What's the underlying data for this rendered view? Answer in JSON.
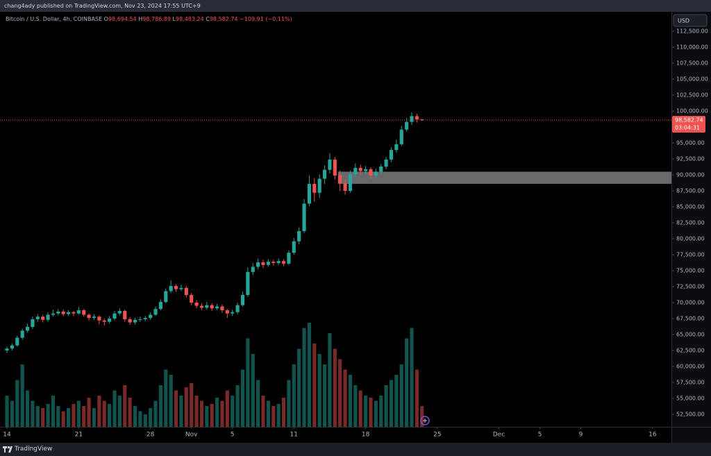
{
  "header": {
    "text": "chang4ady published on TradingView.com, Nov 23, 2024 17:55 UTC+9"
  },
  "footer": {
    "brand": "TradingView"
  },
  "chart_data": {
    "type": "candlestick",
    "symbol": "Bitcoin / U.S. Dollar, 4h, COINBASE",
    "ohlc_legend": [
      {
        "key": "O",
        "value": "98,694.54"
      },
      {
        "key": "H",
        "value": "98,786.89"
      },
      {
        "key": "L",
        "value": "98,483.24"
      },
      {
        "key": "C",
        "value": "98,582.74"
      }
    ],
    "change": "−109.91 (−0.11%)",
    "currency": "USD",
    "last_price": 98582.74,
    "last_price_label": "98,582.74",
    "countdown": "03:04:31",
    "up_color": "#26a69a",
    "down_color": "#ef5350",
    "zone": {
      "x_from": 32.3,
      "y_range": [
        88600,
        90500
      ],
      "color": "#8c8c8c"
    },
    "xlim": [
      -0.68,
      64.84
    ],
    "ylim": [
      50543,
      115543
    ],
    "grid": false,
    "xticks": [
      {
        "value": 0,
        "label": "14"
      },
      {
        "value": 7,
        "label": "21"
      },
      {
        "value": 14,
        "label": "28"
      },
      {
        "value": 18,
        "label": "Nov"
      },
      {
        "value": 22,
        "label": "5"
      },
      {
        "value": 28,
        "label": "11"
      },
      {
        "value": 35,
        "label": "18"
      },
      {
        "value": 42,
        "label": "25"
      },
      {
        "value": 48,
        "label": "Dec"
      },
      {
        "value": 52,
        "label": "5"
      },
      {
        "value": 56,
        "label": "9"
      },
      {
        "value": 63,
        "label": "16"
      }
    ],
    "yticks": [
      {
        "value": 52500,
        "label": "52,500.00"
      },
      {
        "value": 55000,
        "label": "55,000.00"
      },
      {
        "value": 57500,
        "label": "57,500.00"
      },
      {
        "value": 60000,
        "label": "60,000.00"
      },
      {
        "value": 62500,
        "label": "62,500.00"
      },
      {
        "value": 65000,
        "label": "65,000.00"
      },
      {
        "value": 67500,
        "label": "67,500.00"
      },
      {
        "value": 70000,
        "label": "70,000.00"
      },
      {
        "value": 72500,
        "label": "72,500.00"
      },
      {
        "value": 75000,
        "label": "75,000.00"
      },
      {
        "value": 77500,
        "label": "77,500.00"
      },
      {
        "value": 80000,
        "label": "80,000.00"
      },
      {
        "value": 82500,
        "label": "82,500.00"
      },
      {
        "value": 85000,
        "label": "85,000.00"
      },
      {
        "value": 87500,
        "label": "87,500.00"
      },
      {
        "value": 90000,
        "label": "90,000.00"
      },
      {
        "value": 92500,
        "label": "92,500.00"
      },
      {
        "value": 95000,
        "label": "95,000.00"
      },
      {
        "value": 97500,
        "label": "97,500.00"
      },
      {
        "value": 100000,
        "label": "100,000.00"
      },
      {
        "value": 102500,
        "label": "102,500.00"
      },
      {
        "value": 105000,
        "label": "105,000.00"
      },
      {
        "value": 107500,
        "label": "107,500.00"
      },
      {
        "value": 110000,
        "label": "110,000.00"
      },
      {
        "value": 112500,
        "label": "112,500.00"
      }
    ],
    "x": [
      0,
      0.5,
      1,
      1.5,
      2,
      2.5,
      3,
      3.5,
      4,
      4.5,
      5,
      5.5,
      6,
      6.5,
      7,
      7.5,
      8,
      8.5,
      9,
      9.5,
      10,
      10.5,
      11,
      11.5,
      12,
      12.5,
      13,
      13.5,
      14,
      14.5,
      15,
      15.5,
      16,
      16.5,
      17,
      17.5,
      18,
      18.5,
      19,
      19.5,
      20,
      20.5,
      21,
      21.5,
      22,
      22.5,
      23,
      23.5,
      24,
      24.5,
      25,
      25.5,
      26,
      26.5,
      27,
      27.5,
      28,
      28.5,
      29,
      29.5,
      30,
      30.5,
      31,
      31.5,
      32,
      32.5,
      33,
      33.5,
      34,
      34.5,
      35,
      35.5,
      36,
      36.5,
      37,
      37.5,
      38,
      38.5,
      39,
      39.5,
      40,
      40.5
    ],
    "open": [
      62500,
      62800,
      63300,
      64500,
      65600,
      66200,
      67400,
      67800,
      67300,
      68100,
      68300,
      68600,
      68200,
      68500,
      68300,
      68800,
      68100,
      67600,
      67800,
      67200,
      67000,
      67500,
      68300,
      68700,
      67400,
      66900,
      67300,
      67400,
      67600,
      68100,
      69000,
      70100,
      71800,
      72600,
      72100,
      72300,
      71200,
      70000,
      69500,
      69200,
      69600,
      69100,
      69400,
      68800,
      68300,
      68500,
      69600,
      71200,
      74800,
      75600,
      76300,
      75900,
      76400,
      76200,
      76500,
      76100,
      77800,
      79600,
      81200,
      85500,
      88600,
      87200,
      89400,
      90800,
      92400,
      89900,
      88700,
      87500,
      90100,
      91100,
      90600,
      90900,
      89900,
      90500,
      91300,
      92400,
      93900,
      94800,
      97100,
      98300,
      99200,
      98694.54
    ],
    "high": [
      63100,
      63600,
      64800,
      65900,
      66700,
      67800,
      68200,
      68100,
      68500,
      68900,
      69000,
      68900,
      68800,
      68700,
      69300,
      69000,
      68300,
      68200,
      68000,
      67500,
      67900,
      68700,
      69100,
      68900,
      67700,
      67600,
      67800,
      67900,
      68500,
      69400,
      70500,
      72200,
      73500,
      72900,
      72800,
      72600,
      71500,
      70400,
      69900,
      70100,
      69900,
      69800,
      69700,
      69000,
      68900,
      70000,
      71700,
      75500,
      76200,
      76900,
      76700,
      76800,
      76700,
      76900,
      76800,
      78200,
      80100,
      81800,
      86200,
      89900,
      89500,
      90100,
      91500,
      93400,
      92800,
      90700,
      89300,
      90700,
      91800,
      91600,
      91400,
      91200,
      91000,
      91700,
      92800,
      94300,
      95500,
      97700,
      98900,
      99800,
      99600,
      98786.89
    ],
    "low": [
      62100,
      62500,
      63100,
      64200,
      65300,
      65900,
      67000,
      66900,
      67000,
      67800,
      68000,
      67900,
      67900,
      67900,
      68100,
      67800,
      67200,
      67300,
      66600,
      66400,
      66700,
      67200,
      68000,
      67000,
      66500,
      66600,
      67000,
      67100,
      67300,
      67900,
      68800,
      69900,
      71500,
      71700,
      71800,
      70800,
      69600,
      69100,
      68800,
      68900,
      68700,
      68800,
      68400,
      67600,
      67900,
      68200,
      69400,
      70900,
      74300,
      75200,
      75400,
      75600,
      75800,
      75900,
      75700,
      75900,
      77500,
      79100,
      80900,
      85100,
      85800,
      86400,
      88600,
      90200,
      89300,
      87500,
      86900,
      87200,
      89700,
      90000,
      90100,
      89400,
      89500,
      90100,
      90900,
      92000,
      93500,
      94500,
      96800,
      97800,
      98200,
      98483.24
    ],
    "close": [
      62800,
      63300,
      64500,
      65600,
      66200,
      67400,
      67800,
      67300,
      68100,
      68300,
      68600,
      68200,
      68500,
      68300,
      68800,
      68100,
      67600,
      67800,
      67200,
      67000,
      67500,
      68300,
      68700,
      67400,
      66900,
      67300,
      67400,
      67600,
      68100,
      69000,
      70100,
      71800,
      72600,
      72100,
      72300,
      71200,
      70000,
      69500,
      69200,
      69600,
      69100,
      69400,
      68800,
      68300,
      68500,
      69600,
      71200,
      74800,
      75600,
      76300,
      75900,
      76400,
      76200,
      76500,
      76100,
      77800,
      79600,
      81200,
      85500,
      88600,
      87200,
      89400,
      90800,
      92400,
      89900,
      88700,
      87500,
      90100,
      91100,
      90600,
      90900,
      89900,
      90500,
      91300,
      92400,
      93900,
      94800,
      97100,
      98300,
      99200,
      98700,
      98582.74
    ],
    "volume": [
      30,
      25,
      45,
      60,
      35,
      25,
      20,
      18,
      22,
      30,
      20,
      15,
      18,
      22,
      25,
      20,
      28,
      18,
      30,
      25,
      22,
      35,
      30,
      40,
      28,
      20,
      15,
      12,
      18,
      25,
      40,
      55,
      50,
      35,
      30,
      38,
      42,
      30,
      25,
      20,
      22,
      28,
      25,
      35,
      30,
      40,
      55,
      85,
      70,
      45,
      30,
      25,
      20,
      22,
      28,
      45,
      60,
      75,
      95,
      100,
      80,
      70,
      60,
      90,
      75,
      65,
      55,
      50,
      40,
      35,
      30,
      28,
      25,
      30,
      40,
      45,
      50,
      60,
      85,
      95,
      55,
      20
    ]
  }
}
